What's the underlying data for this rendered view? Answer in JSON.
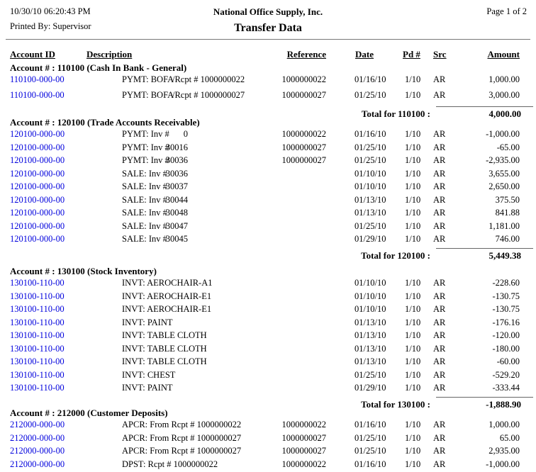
{
  "header": {
    "date": "10/30/10",
    "time": "06:20:43 PM",
    "company": "National Office Supply, Inc.",
    "page": "Page 1 of 2",
    "printed_by": "Printed By: Supervisor",
    "title": "Transfer Data"
  },
  "colors": {
    "account_link": "#0000dd"
  },
  "columns": [
    "Account ID",
    "Description",
    "Reference",
    "Date",
    "Pd #",
    "Src",
    "Amount"
  ],
  "sections": [
    {
      "account_header": "Account # : 110100 (Cash In Bank - General)",
      "rows": [
        {
          "id": "110100-000-00",
          "desc": "PYMT: BOFA",
          "detail": "/Rcpt # 1000000022",
          "detail_type": "text",
          "ref": "1000000022",
          "date": "01/16/10",
          "pd": "1/10",
          "src": "AR",
          "amt": "1,000.00"
        },
        {
          "id": "110100-000-00",
          "desc": "PYMT: BOFA",
          "detail": "/Rcpt # 1000000027",
          "detail_type": "text",
          "ref": "1000000027",
          "date": "01/25/10",
          "pd": "1/10",
          "src": "AR",
          "amt": "3,000.00"
        }
      ],
      "total_label": "Total for 110100 :",
      "total": "4,000.00"
    },
    {
      "account_header": "Account # : 120100 (Trade Accounts Receivable)",
      "rows": [
        {
          "id": "120100-000-00",
          "desc": "PYMT: Inv #",
          "detail": "0",
          "detail_type": "num",
          "ref": "1000000022",
          "date": "01/16/10",
          "pd": "1/10",
          "src": "AR",
          "amt": "-1,000.00"
        },
        {
          "id": "120100-000-00",
          "desc": "PYMT: Inv #",
          "detail": "30016",
          "detail_type": "num",
          "ref": "1000000027",
          "date": "01/25/10",
          "pd": "1/10",
          "src": "AR",
          "amt": "-65.00"
        },
        {
          "id": "120100-000-00",
          "desc": "PYMT: Inv #",
          "detail": "30036",
          "detail_type": "num",
          "ref": "1000000027",
          "date": "01/25/10",
          "pd": "1/10",
          "src": "AR",
          "amt": "-2,935.00"
        },
        {
          "id": "120100-000-00",
          "desc": "SALE: Inv #",
          "detail": "30036",
          "detail_type": "num",
          "ref": "",
          "date": "01/10/10",
          "pd": "1/10",
          "src": "AR",
          "amt": "3,655.00"
        },
        {
          "id": "120100-000-00",
          "desc": "SALE: Inv #",
          "detail": "30037",
          "detail_type": "num",
          "ref": "",
          "date": "01/10/10",
          "pd": "1/10",
          "src": "AR",
          "amt": "2,650.00"
        },
        {
          "id": "120100-000-00",
          "desc": "SALE: Inv #",
          "detail": "30044",
          "detail_type": "num",
          "ref": "",
          "date": "01/13/10",
          "pd": "1/10",
          "src": "AR",
          "amt": "375.50"
        },
        {
          "id": "120100-000-00",
          "desc": "SALE: Inv #",
          "detail": "30048",
          "detail_type": "num",
          "ref": "",
          "date": "01/13/10",
          "pd": "1/10",
          "src": "AR",
          "amt": "841.88"
        },
        {
          "id": "120100-000-00",
          "desc": "SALE: Inv #",
          "detail": "30047",
          "detail_type": "num",
          "ref": "",
          "date": "01/25/10",
          "pd": "1/10",
          "src": "AR",
          "amt": "1,181.00"
        },
        {
          "id": "120100-000-00",
          "desc": "SALE: Inv #",
          "detail": "30045",
          "detail_type": "num",
          "ref": "",
          "date": "01/29/10",
          "pd": "1/10",
          "src": "AR",
          "amt": "746.00"
        }
      ],
      "total_label": "Total for 120100 :",
      "total": "5,449.38"
    },
    {
      "account_header": "Account # : 130100 (Stock Inventory)",
      "rows": [
        {
          "id": "130100-110-00",
          "desc": "INVT: AEROCHAIR-A1",
          "detail": null,
          "detail_type": null,
          "ref": "",
          "date": "01/10/10",
          "pd": "1/10",
          "src": "AR",
          "amt": "-228.60"
        },
        {
          "id": "130100-110-00",
          "desc": "INVT: AEROCHAIR-E1",
          "detail": null,
          "detail_type": null,
          "ref": "",
          "date": "01/10/10",
          "pd": "1/10",
          "src": "AR",
          "amt": "-130.75"
        },
        {
          "id": "130100-110-00",
          "desc": "INVT: AEROCHAIR-E1",
          "detail": null,
          "detail_type": null,
          "ref": "",
          "date": "01/10/10",
          "pd": "1/10",
          "src": "AR",
          "amt": "-130.75"
        },
        {
          "id": "130100-110-00",
          "desc": "INVT: PAINT",
          "detail": null,
          "detail_type": null,
          "ref": "",
          "date": "01/13/10",
          "pd": "1/10",
          "src": "AR",
          "amt": "-176.16"
        },
        {
          "id": "130100-110-00",
          "desc": "INVT: TABLE CLOTH",
          "detail": null,
          "detail_type": null,
          "ref": "",
          "date": "01/13/10",
          "pd": "1/10",
          "src": "AR",
          "amt": "-120.00"
        },
        {
          "id": "130100-110-00",
          "desc": "INVT: TABLE CLOTH",
          "detail": null,
          "detail_type": null,
          "ref": "",
          "date": "01/13/10",
          "pd": "1/10",
          "src": "AR",
          "amt": "-180.00"
        },
        {
          "id": "130100-110-00",
          "desc": "INVT: TABLE CLOTH",
          "detail": null,
          "detail_type": null,
          "ref": "",
          "date": "01/13/10",
          "pd": "1/10",
          "src": "AR",
          "amt": "-60.00"
        },
        {
          "id": "130100-110-00",
          "desc": "INVT: CHEST",
          "detail": null,
          "detail_type": null,
          "ref": "",
          "date": "01/25/10",
          "pd": "1/10",
          "src": "AR",
          "amt": "-529.20"
        },
        {
          "id": "130100-110-00",
          "desc": "INVT: PAINT",
          "detail": null,
          "detail_type": null,
          "ref": "",
          "date": "01/29/10",
          "pd": "1/10",
          "src": "AR",
          "amt": "-333.44"
        }
      ],
      "total_label": "Total for 130100 :",
      "total": "-1,888.90"
    },
    {
      "account_header": "Account # : 212000 (Customer Deposits)",
      "rows": [
        {
          "id": "212000-000-00",
          "desc": "APCR: From Rcpt # 1000000022",
          "detail": null,
          "detail_type": null,
          "ref": "1000000022",
          "date": "01/16/10",
          "pd": "1/10",
          "src": "AR",
          "amt": "1,000.00"
        },
        {
          "id": "212000-000-00",
          "desc": "APCR: From Rcpt # 1000000027",
          "detail": null,
          "detail_type": null,
          "ref": "1000000027",
          "date": "01/25/10",
          "pd": "1/10",
          "src": "AR",
          "amt": "65.00"
        },
        {
          "id": "212000-000-00",
          "desc": "APCR: From Rcpt # 1000000027",
          "detail": null,
          "detail_type": null,
          "ref": "1000000027",
          "date": "01/25/10",
          "pd": "1/10",
          "src": "AR",
          "amt": "2,935.00"
        },
        {
          "id": "212000-000-00",
          "desc": "DPST: Rcpt # 1000000022",
          "detail": null,
          "detail_type": null,
          "ref": "1000000022",
          "date": "01/16/10",
          "pd": "1/10",
          "src": "AR",
          "amt": "-1,000.00"
        }
      ],
      "total_label": null,
      "total": null
    }
  ]
}
